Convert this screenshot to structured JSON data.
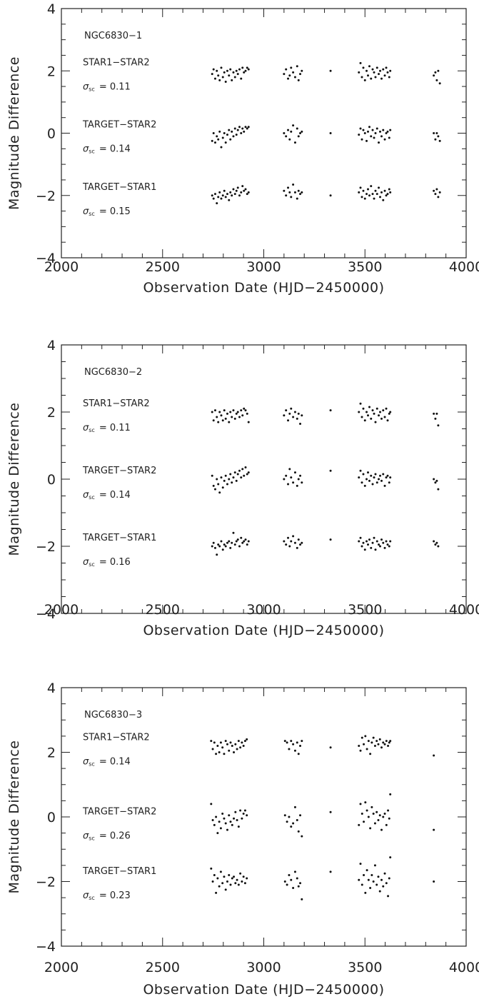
{
  "chart_data": [
    {
      "type": "scatter",
      "title": "NGC6830-1",
      "xlabel": "Observation Date (HJD-2450000)",
      "ylabel": "Magnitude Difference",
      "xlim": [
        2000,
        4000
      ],
      "ylim": [
        -4,
        4
      ],
      "xticks": [
        2000,
        2500,
        3000,
        3500,
        4000
      ],
      "yticks": [
        -4,
        -2,
        0,
        2,
        4
      ],
      "series": [
        {
          "name": "STAR1-STAR2",
          "sigma_label": "σ",
          "sigma_sub": "sc",
          "sigma_text": "= 0.11",
          "offset": 2,
          "scatter": 0.11
        },
        {
          "name": "TARGET-STAR2",
          "sigma_label": "σ",
          "sigma_sub": "sc",
          "sigma_text": "= 0.14",
          "offset": 0,
          "scatter": 0.14
        },
        {
          "name": "TARGET-STAR1",
          "sigma_label": "σ",
          "sigma_sub": "sc",
          "sigma_text": "= 0.15",
          "offset": -2,
          "scatter": 0.15
        }
      ],
      "observation_dates": [
        2745,
        2752,
        2760,
        2768,
        2775,
        2782,
        2790,
        2798,
        2805,
        2812,
        2820,
        2828,
        2835,
        2842,
        2850,
        2858,
        2865,
        2872,
        2880,
        2888,
        2895,
        2902,
        2910,
        2918,
        2925,
        3100,
        3110,
        3120,
        3128,
        3135,
        3145,
        3155,
        3165,
        3172,
        3180,
        3188,
        3330,
        3470,
        3478,
        3485,
        3492,
        3500,
        3508,
        3515,
        3522,
        3530,
        3538,
        3545,
        3552,
        3560,
        3568,
        3575,
        3582,
        3590,
        3598,
        3605,
        3612,
        3620,
        3625,
        3840,
        3848,
        3855,
        3862,
        3870
      ],
      "values": {
        "STAR1-STAR2": [
          1.9,
          2.05,
          1.75,
          2.0,
          1.85,
          1.7,
          2.1,
          1.8,
          1.95,
          1.65,
          2.0,
          1.85,
          2.05,
          1.7,
          1.95,
          1.8,
          2.0,
          1.9,
          2.05,
          1.75,
          2.1,
          1.95,
          2.0,
          2.1,
          2.05,
          1.9,
          2.05,
          1.75,
          1.85,
          2.1,
          1.95,
          1.8,
          2.15,
          1.7,
          1.9,
          2.0,
          2.0,
          1.95,
          2.25,
          1.8,
          2.1,
          1.7,
          2.0,
          1.85,
          2.15,
          1.75,
          2.05,
          1.95,
          1.8,
          2.1,
          1.9,
          2.0,
          1.75,
          2.05,
          1.85,
          2.1,
          1.95,
          1.8,
          2.0,
          1.85,
          1.95,
          1.7,
          2.0,
          1.6
        ],
        "TARGET-STAR2": [
          -0.25,
          0.0,
          -0.3,
          -0.1,
          -0.2,
          0.05,
          -0.45,
          -0.15,
          0.0,
          -0.3,
          -0.05,
          0.1,
          -0.2,
          0.05,
          -0.1,
          0.15,
          -0.05,
          0.1,
          0.2,
          0.0,
          0.15,
          0.05,
          0.2,
          0.15,
          0.2,
          0.0,
          -0.1,
          0.1,
          -0.2,
          0.05,
          0.25,
          -0.3,
          0.15,
          -0.1,
          0.0,
          0.05,
          0.0,
          -0.05,
          0.15,
          -0.2,
          0.1,
          0.0,
          -0.25,
          0.05,
          0.2,
          -0.1,
          0.1,
          -0.15,
          0.0,
          0.15,
          -0.3,
          0.05,
          -0.1,
          0.1,
          -0.2,
          0.0,
          0.05,
          -0.15,
          0.1,
          0.0,
          -0.2,
          0.0,
          -0.1,
          -0.25
        ],
        "TARGET-STAR1": [
          -2.0,
          -2.1,
          -1.95,
          -2.25,
          -2.05,
          -1.9,
          -2.1,
          -2.0,
          -1.85,
          -2.05,
          -1.95,
          -2.15,
          -1.9,
          -2.0,
          -1.8,
          -1.95,
          -1.85,
          -1.75,
          -2.0,
          -1.9,
          -1.7,
          -1.85,
          -1.8,
          -1.95,
          -1.9,
          -1.85,
          -2.0,
          -1.75,
          -1.9,
          -2.05,
          -1.65,
          -1.9,
          -2.1,
          -1.85,
          -1.95,
          -1.9,
          -2.0,
          -1.9,
          -1.75,
          -2.05,
          -1.85,
          -2.1,
          -1.95,
          -1.8,
          -2.0,
          -1.7,
          -1.95,
          -2.1,
          -1.85,
          -1.95,
          -1.75,
          -2.05,
          -1.9,
          -2.15,
          -1.85,
          -2.0,
          -1.95,
          -1.8,
          -1.9,
          -1.85,
          -1.95,
          -1.8,
          -2.05,
          -1.9
        ]
      }
    },
    {
      "type": "scatter",
      "title": "NGC6830-2",
      "xlabel": "Observation Date (HJD-2450000)",
      "ylabel": "Magnitude Difference",
      "xlim": [
        2000,
        4000
      ],
      "ylim": [
        -4,
        4
      ],
      "xticks": [
        2000,
        2500,
        3000,
        3500,
        4000
      ],
      "yticks": [
        -4,
        -2,
        0,
        2,
        4
      ],
      "series": [
        {
          "name": "STAR1-STAR2",
          "sigma_label": "σ",
          "sigma_sub": "sc",
          "sigma_text": "= 0.11",
          "offset": 2,
          "scatter": 0.11
        },
        {
          "name": "TARGET-STAR2",
          "sigma_label": "σ",
          "sigma_sub": "sc",
          "sigma_text": "= 0.14",
          "offset": 0,
          "scatter": 0.14
        },
        {
          "name": "TARGET-STAR1",
          "sigma_label": "σ",
          "sigma_sub": "sc",
          "sigma_text": "= 0.16",
          "offset": -2,
          "scatter": 0.16
        }
      ],
      "observation_dates": [
        2745,
        2752,
        2760,
        2768,
        2775,
        2782,
        2790,
        2798,
        2805,
        2812,
        2820,
        2828,
        2835,
        2842,
        2850,
        2858,
        2865,
        2872,
        2880,
        2888,
        2895,
        2902,
        2910,
        2918,
        2925,
        3100,
        3110,
        3120,
        3128,
        3135,
        3145,
        3155,
        3165,
        3172,
        3180,
        3188,
        3330,
        3470,
        3478,
        3485,
        3492,
        3500,
        3508,
        3515,
        3522,
        3530,
        3538,
        3545,
        3552,
        3560,
        3568,
        3575,
        3582,
        3590,
        3598,
        3605,
        3612,
        3620,
        3625,
        3840,
        3848,
        3855,
        3862
      ],
      "values": {
        "STAR1-STAR2": [
          2.0,
          1.75,
          2.05,
          1.85,
          1.7,
          2.0,
          1.9,
          1.75,
          2.05,
          1.8,
          1.95,
          1.7,
          2.0,
          1.85,
          2.05,
          1.8,
          1.95,
          2.0,
          1.85,
          2.05,
          1.9,
          2.1,
          2.05,
          1.95,
          1.7,
          1.9,
          2.05,
          1.75,
          1.95,
          2.1,
          1.85,
          2.0,
          1.8,
          1.95,
          1.65,
          1.9,
          2.05,
          2.0,
          2.25,
          1.85,
          2.1,
          1.75,
          2.0,
          1.9,
          2.15,
          1.8,
          2.05,
          1.95,
          1.7,
          2.1,
          1.9,
          2.0,
          1.8,
          2.05,
          1.85,
          2.1,
          1.75,
          1.95,
          2.0,
          1.95,
          1.8,
          1.95,
          1.6
        ],
        "TARGET-STAR2": [
          0.1,
          -0.2,
          -0.3,
          0.0,
          -0.15,
          -0.4,
          0.05,
          -0.25,
          -0.05,
          0.1,
          -0.15,
          0.0,
          0.15,
          -0.1,
          0.05,
          0.2,
          -0.05,
          0.15,
          0.25,
          0.05,
          0.3,
          0.1,
          0.35,
          0.15,
          0.2,
          0.0,
          0.1,
          -0.15,
          0.3,
          0.05,
          -0.1,
          0.2,
          -0.2,
          0.0,
          0.1,
          -0.1,
          0.25,
          0.05,
          0.25,
          -0.1,
          0.15,
          -0.2,
          0.0,
          0.2,
          -0.05,
          0.1,
          -0.15,
          0.05,
          0.15,
          -0.1,
          0.0,
          0.1,
          -0.05,
          0.15,
          -0.2,
          0.05,
          0.1,
          -0.1,
          0.05,
          0.0,
          -0.1,
          -0.05,
          -0.3
        ],
        "TARGET-STAR1": [
          -2.0,
          -1.9,
          -2.05,
          -2.25,
          -1.95,
          -2.0,
          -1.85,
          -2.1,
          -1.95,
          -2.0,
          -1.9,
          -1.85,
          -2.05,
          -1.9,
          -1.6,
          -1.95,
          -1.85,
          -1.8,
          -2.0,
          -1.75,
          -1.9,
          -1.85,
          -1.8,
          -1.95,
          -1.85,
          -1.85,
          -1.95,
          -1.75,
          -2.0,
          -1.85,
          -1.7,
          -1.9,
          -2.05,
          -1.8,
          -1.95,
          -1.9,
          -1.8,
          -1.85,
          -1.75,
          -2.0,
          -1.9,
          -2.1,
          -1.85,
          -1.95,
          -1.8,
          -2.05,
          -1.9,
          -1.75,
          -2.1,
          -1.85,
          -1.95,
          -2.0,
          -1.8,
          -1.9,
          -2.05,
          -1.85,
          -1.95,
          -2.0,
          -1.85,
          -1.85,
          -1.95,
          -1.9,
          -2.0
        ]
      }
    },
    {
      "type": "scatter",
      "title": "NGC6830-3",
      "xlabel": "Observation Date (HJD-2450000)",
      "ylabel": "Magnitude Difference",
      "xlim": [
        2000,
        4000
      ],
      "ylim": [
        -4,
        4
      ],
      "xticks": [
        2000,
        2500,
        3000,
        3500,
        4000
      ],
      "yticks": [
        -4,
        -2,
        0,
        2,
        4
      ],
      "series": [
        {
          "name": "STAR1-STAR2",
          "sigma_label": "σ",
          "sigma_sub": "sc",
          "sigma_text": "= 0.14",
          "offset": 2.2,
          "scatter": 0.14
        },
        {
          "name": "TARGET-STAR2",
          "sigma_label": "σ",
          "sigma_sub": "sc",
          "sigma_text": "= 0.26",
          "offset": -0.1,
          "scatter": 0.26
        },
        {
          "name": "TARGET-STAR1",
          "sigma_label": "σ",
          "sigma_sub": "sc",
          "sigma_text": "= 0.23",
          "offset": -1.95,
          "scatter": 0.23
        }
      ],
      "observation_dates": [
        2740,
        2748,
        2756,
        2764,
        2772,
        2780,
        2788,
        2796,
        2804,
        2812,
        2820,
        2828,
        2836,
        2844,
        2852,
        2860,
        2868,
        2876,
        2884,
        2892,
        2900,
        2908,
        2916,
        3105,
        3115,
        3125,
        3135,
        3145,
        3155,
        3165,
        3172,
        3180,
        3188,
        3330,
        3470,
        3478,
        3486,
        3494,
        3502,
        3510,
        3518,
        3526,
        3534,
        3542,
        3550,
        3558,
        3566,
        3574,
        3582,
        3590,
        3598,
        3606,
        3614,
        3620,
        3625,
        3840
      ],
      "values": {
        "STAR1-STAR2": [
          2.35,
          2.1,
          2.3,
          1.95,
          2.2,
          2.0,
          2.3,
          2.15,
          1.95,
          2.35,
          2.25,
          2.05,
          2.3,
          2.2,
          2.0,
          2.25,
          2.1,
          2.35,
          2.15,
          2.3,
          2.2,
          2.35,
          2.4,
          2.35,
          2.3,
          2.1,
          2.35,
          2.25,
          2.05,
          2.3,
          1.95,
          2.2,
          2.35,
          2.15,
          2.2,
          2.05,
          2.45,
          2.25,
          2.5,
          2.1,
          2.35,
          1.95,
          2.3,
          2.45,
          2.2,
          2.35,
          2.25,
          2.4,
          2.15,
          2.3,
          2.25,
          2.35,
          2.2,
          2.3,
          2.35,
          1.9
        ],
        "TARGET-STAR2": [
          0.4,
          -0.1,
          -0.25,
          0.0,
          -0.5,
          -0.15,
          -0.35,
          0.1,
          -0.05,
          -0.2,
          -0.4,
          0.05,
          -0.15,
          -0.25,
          -0.05,
          0.15,
          -0.1,
          -0.3,
          0.2,
          -0.05,
          0.1,
          0.2,
          0.05,
          0.05,
          -0.15,
          0.0,
          -0.3,
          -0.2,
          0.3,
          -0.1,
          -0.45,
          0.05,
          -0.6,
          0.15,
          -0.25,
          0.4,
          0.1,
          -0.15,
          0.45,
          0.2,
          0.0,
          -0.35,
          0.3,
          0.1,
          -0.2,
          0.15,
          -0.1,
          0.05,
          -0.4,
          0.0,
          0.1,
          -0.25,
          0.2,
          -0.05,
          0.7,
          -0.4
        ],
        "TARGET-STAR1": [
          -1.6,
          -2.0,
          -1.8,
          -2.35,
          -1.9,
          -2.15,
          -1.7,
          -2.05,
          -1.85,
          -2.25,
          -2.0,
          -1.8,
          -2.1,
          -1.9,
          -1.85,
          -2.05,
          -1.95,
          -2.1,
          -1.75,
          -2.0,
          -1.85,
          -2.05,
          -1.9,
          -2.0,
          -2.1,
          -1.8,
          -1.95,
          -2.2,
          -1.7,
          -1.9,
          -2.15,
          -2.05,
          -2.55,
          -1.7,
          -1.95,
          -1.45,
          -2.1,
          -1.8,
          -2.35,
          -1.65,
          -1.95,
          -2.2,
          -1.8,
          -2.0,
          -1.5,
          -2.1,
          -1.85,
          -2.3,
          -1.95,
          -2.15,
          -1.75,
          -2.05,
          -2.45,
          -1.9,
          -1.25,
          -2.0
        ]
      }
    }
  ]
}
